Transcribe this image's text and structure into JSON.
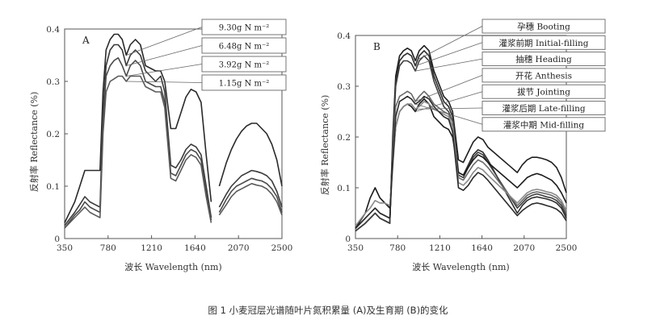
{
  "caption": "图 1 小麦冠层光谱随叶片氮积累量 (A)及生育期 (B)的变化",
  "chart_data": [
    {
      "type": "line",
      "panel_label": "A",
      "xlabel": "波长 Wavelength (nm)",
      "ylabel": "反射率 Reflectance (%)",
      "xlim": [
        350,
        2500
      ],
      "ylim": [
        0,
        0.4
      ],
      "x_ticks": [
        350,
        780,
        1210,
        1640,
        2070,
        2500
      ],
      "x_tick_labels": [
        "350",
        "780",
        "1210",
        "1640",
        "2070",
        "2500"
      ],
      "y_ticks": [
        0,
        0.1,
        0.2,
        0.3,
        0.4
      ],
      "y_tick_labels": [
        "0",
        "0.1",
        "0.2",
        "0.3",
        "0.4"
      ],
      "series": [
        {
          "name": "9.30g N m⁻²",
          "color": "#2a2a2a",
          "x": [
            350,
            450,
            500,
            550,
            600,
            650,
            700,
            730,
            760,
            800,
            840,
            880,
            920,
            960,
            1000,
            1050,
            1100,
            1150,
            1250,
            1300,
            1340,
            1400,
            1450,
            1500,
            1550,
            1600,
            1650,
            1700,
            1750,
            1800,
            1820,
            1880,
            1950,
            2000,
            2050,
            2100,
            2150,
            2200,
            2250,
            2300,
            2350,
            2400,
            2450,
            2500
          ],
          "y": [
            0.03,
            0.07,
            0.1,
            0.13,
            0.13,
            0.13,
            0.13,
            0.28,
            0.36,
            0.38,
            0.39,
            0.39,
            0.38,
            0.35,
            0.37,
            0.38,
            0.37,
            0.33,
            0.32,
            0.32,
            0.3,
            0.21,
            0.21,
            0.24,
            0.27,
            0.285,
            0.28,
            0.26,
            0.16,
            0.07,
            null,
            0.1,
            0.145,
            0.17,
            0.19,
            0.205,
            0.215,
            0.22,
            0.22,
            0.21,
            0.2,
            0.18,
            0.15,
            0.1
          ]
        },
        {
          "name": "6.48g N m⁻²",
          "color": "#3a3a3a",
          "x": [
            350,
            450,
            500,
            550,
            600,
            650,
            700,
            730,
            760,
            800,
            840,
            880,
            920,
            960,
            1000,
            1050,
            1100,
            1150,
            1250,
            1300,
            1340,
            1400,
            1450,
            1500,
            1550,
            1600,
            1650,
            1700,
            1750,
            1800,
            1820,
            1880,
            1950,
            2000,
            2050,
            2100,
            2150,
            2200,
            2250,
            2300,
            2350,
            2400,
            2450,
            2500
          ],
          "y": [
            0.025,
            0.05,
            0.065,
            0.08,
            0.07,
            0.065,
            0.06,
            0.24,
            0.33,
            0.36,
            0.37,
            0.37,
            0.36,
            0.33,
            0.35,
            0.36,
            0.35,
            0.32,
            0.3,
            0.31,
            0.28,
            0.14,
            0.135,
            0.15,
            0.17,
            0.18,
            0.175,
            0.16,
            0.1,
            0.04,
            null,
            0.06,
            0.085,
            0.1,
            0.11,
            0.12,
            0.125,
            0.13,
            0.128,
            0.125,
            0.12,
            0.11,
            0.09,
            0.06
          ]
        },
        {
          "name": "3.92g N m⁻²",
          "color": "#4a4a4a",
          "x": [
            350,
            450,
            500,
            550,
            600,
            650,
            700,
            730,
            760,
            800,
            840,
            880,
            920,
            960,
            1000,
            1050,
            1100,
            1150,
            1250,
            1300,
            1340,
            1400,
            1450,
            1500,
            1550,
            1600,
            1650,
            1700,
            1750,
            1800,
            1820,
            1880,
            1950,
            2000,
            2050,
            2100,
            2150,
            2200,
            2250,
            2300,
            2350,
            2400,
            2450,
            2500
          ],
          "y": [
            0.02,
            0.045,
            0.055,
            0.07,
            0.06,
            0.055,
            0.05,
            0.22,
            0.31,
            0.33,
            0.34,
            0.345,
            0.33,
            0.31,
            0.33,
            0.34,
            0.33,
            0.3,
            0.29,
            0.29,
            0.26,
            0.125,
            0.12,
            0.14,
            0.16,
            0.17,
            0.165,
            0.15,
            0.09,
            0.035,
            null,
            0.05,
            0.075,
            0.09,
            0.1,
            0.105,
            0.11,
            0.115,
            0.112,
            0.11,
            0.105,
            0.095,
            0.08,
            0.05
          ]
        },
        {
          "name": "1.15g N m⁻²",
          "color": "#5a5a5a",
          "x": [
            350,
            450,
            500,
            550,
            600,
            650,
            700,
            730,
            760,
            800,
            840,
            880,
            920,
            960,
            1000,
            1050,
            1100,
            1150,
            1250,
            1300,
            1340,
            1400,
            1450,
            1500,
            1550,
            1600,
            1650,
            1700,
            1750,
            1800,
            1820,
            1880,
            1950,
            2000,
            2050,
            2100,
            2150,
            2200,
            2250,
            2300,
            2350,
            2400,
            2450,
            2500
          ],
          "y": [
            0.02,
            0.04,
            0.05,
            0.06,
            0.05,
            0.045,
            0.04,
            0.2,
            0.28,
            0.3,
            0.305,
            0.31,
            0.31,
            0.3,
            0.31,
            0.31,
            0.31,
            0.29,
            0.28,
            0.28,
            0.25,
            0.115,
            0.11,
            0.13,
            0.15,
            0.16,
            0.155,
            0.14,
            0.08,
            0.03,
            null,
            0.045,
            0.065,
            0.08,
            0.09,
            0.095,
            0.1,
            0.105,
            0.102,
            0.1,
            0.095,
            0.085,
            0.07,
            0.045
          ]
        }
      ]
    },
    {
      "type": "line",
      "panel_label": "B",
      "xlabel": "波长 Wavelength (nm)",
      "ylabel": "反射率 Reflectance (%)",
      "xlim": [
        350,
        2500
      ],
      "ylim": [
        0,
        0.4
      ],
      "x_ticks": [
        350,
        780,
        1210,
        1640,
        2070,
        2500
      ],
      "x_tick_labels": [
        "350",
        "780",
        "1210",
        "1640",
        "2070",
        "2500"
      ],
      "y_ticks": [
        0,
        0.1,
        0.2,
        0.3,
        0.4
      ],
      "y_tick_labels": [
        "0",
        "0.1",
        "0.2",
        "0.3",
        "0.4"
      ],
      "series": [
        {
          "name": "孕穗 Booting",
          "color": "#1e1e1e",
          "x": [
            350,
            450,
            500,
            550,
            600,
            650,
            700,
            730,
            760,
            800,
            840,
            880,
            920,
            960,
            1000,
            1050,
            1100,
            1150,
            1250,
            1300,
            1340,
            1400,
            1450,
            1500,
            1550,
            1600,
            1650,
            1700,
            2000,
            2050,
            2100,
            2150,
            2200,
            2250,
            2300,
            2350,
            2400,
            2450,
            2500
          ],
          "y": [
            0.015,
            0.03,
            0.04,
            0.05,
            0.04,
            0.035,
            0.03,
            0.2,
            0.32,
            0.36,
            0.37,
            0.375,
            0.37,
            0.35,
            0.37,
            0.38,
            0.37,
            0.33,
            0.28,
            0.27,
            0.25,
            0.155,
            0.15,
            0.17,
            0.19,
            0.2,
            0.195,
            0.18,
            0.13,
            0.145,
            0.155,
            0.16,
            0.16,
            0.158,
            0.155,
            0.15,
            0.14,
            0.12,
            0.09
          ]
        },
        {
          "name": "灌浆前期 Initial-filling",
          "color": "#2e2e2e",
          "x": [
            350,
            450,
            500,
            550,
            600,
            650,
            700,
            730,
            760,
            800,
            840,
            880,
            920,
            960,
            1000,
            1050,
            1100,
            1150,
            1250,
            1300,
            1340,
            1400,
            1450,
            1500,
            1550,
            1600,
            1650,
            1700,
            2000,
            2050,
            2100,
            2150,
            2200,
            2250,
            2300,
            2350,
            2400,
            2450,
            2500
          ],
          "y": [
            0.015,
            0.03,
            0.04,
            0.05,
            0.04,
            0.035,
            0.03,
            0.19,
            0.31,
            0.35,
            0.36,
            0.365,
            0.36,
            0.34,
            0.36,
            0.37,
            0.36,
            0.32,
            0.27,
            0.26,
            0.24,
            0.13,
            0.125,
            0.145,
            0.165,
            0.175,
            0.17,
            0.155,
            0.05,
            0.065,
            0.075,
            0.08,
            0.082,
            0.08,
            0.078,
            0.075,
            0.07,
            0.06,
            0.04
          ]
        },
        {
          "name": "抽穗 Heading",
          "color": "#3e3e3e",
          "x": [
            350,
            450,
            500,
            550,
            600,
            650,
            700,
            730,
            760,
            800,
            840,
            880,
            920,
            960,
            1000,
            1050,
            1100,
            1150,
            1250,
            1300,
            1340,
            1400,
            1450,
            1500,
            1550,
            1600,
            1650,
            1700,
            2000,
            2050,
            2100,
            2150,
            2200,
            2250,
            2300,
            2350,
            2400,
            2450,
            2500
          ],
          "y": [
            0.015,
            0.03,
            0.04,
            0.05,
            0.04,
            0.035,
            0.03,
            0.18,
            0.3,
            0.34,
            0.35,
            0.35,
            0.345,
            0.33,
            0.35,
            0.36,
            0.35,
            0.31,
            0.26,
            0.25,
            0.23,
            0.125,
            0.12,
            0.14,
            0.16,
            0.17,
            0.165,
            0.15,
            0.06,
            0.07,
            0.08,
            0.085,
            0.088,
            0.085,
            0.082,
            0.08,
            0.075,
            0.065,
            0.045
          ]
        },
        {
          "name": "开花 Anthesis",
          "color": "#6a6a6a",
          "x": [
            350,
            450,
            500,
            550,
            600,
            650,
            700,
            730,
            760,
            800,
            840,
            880,
            920,
            960,
            1000,
            1050,
            1100,
            1150,
            1250,
            1300,
            1340,
            1400,
            1450,
            1500,
            1550,
            1600,
            1650,
            1700,
            2000,
            2050,
            2100,
            2150,
            2200,
            2250,
            2300,
            2350,
            2400,
            2450,
            2500
          ],
          "y": [
            0.02,
            0.04,
            0.05,
            0.06,
            0.05,
            0.045,
            0.04,
            0.17,
            0.26,
            0.28,
            0.285,
            0.29,
            0.285,
            0.27,
            0.28,
            0.29,
            0.28,
            0.265,
            0.25,
            0.245,
            0.23,
            0.12,
            0.115,
            0.13,
            0.145,
            0.155,
            0.15,
            0.14,
            0.065,
            0.075,
            0.085,
            0.09,
            0.092,
            0.09,
            0.088,
            0.085,
            0.08,
            0.07,
            0.05
          ]
        },
        {
          "name": "拔节 Jointing",
          "color": "#1a1a1a",
          "x": [
            350,
            450,
            500,
            550,
            600,
            650,
            700,
            730,
            760,
            800,
            840,
            880,
            920,
            960,
            1000,
            1050,
            1100,
            1150,
            1250,
            1300,
            1340,
            1400,
            1450,
            1500,
            1550,
            1600,
            1650,
            1700,
            2000,
            2050,
            2100,
            2150,
            2200,
            2250,
            2300,
            2350,
            2400,
            2450,
            2500
          ],
          "y": [
            0.02,
            0.05,
            0.08,
            0.1,
            0.08,
            0.07,
            0.06,
            0.15,
            0.22,
            0.25,
            0.26,
            0.265,
            0.26,
            0.25,
            0.265,
            0.275,
            0.265,
            0.24,
            0.22,
            0.215,
            0.2,
            0.13,
            0.125,
            0.14,
            0.155,
            0.165,
            0.16,
            0.15,
            0.1,
            0.11,
            0.12,
            0.125,
            0.128,
            0.125,
            0.12,
            0.115,
            0.105,
            0.09,
            0.07
          ]
        },
        {
          "name": "灌浆后期 Late-filling",
          "color": "#8a8a8a",
          "x": [
            350,
            450,
            500,
            550,
            600,
            650,
            700,
            730,
            760,
            800,
            840,
            880,
            920,
            960,
            1000,
            1050,
            1100,
            1150,
            1250,
            1300,
            1340,
            1400,
            1450,
            1500,
            1550,
            1600,
            1650,
            1700,
            2000,
            2050,
            2100,
            2150,
            2200,
            2250,
            2300,
            2350,
            2400,
            2450,
            2500
          ],
          "y": [
            0.025,
            0.05,
            0.06,
            0.075,
            0.07,
            0.07,
            0.065,
            0.14,
            0.22,
            0.25,
            0.26,
            0.265,
            0.265,
            0.255,
            0.26,
            0.27,
            0.265,
            0.255,
            0.245,
            0.24,
            0.22,
            0.11,
            0.105,
            0.115,
            0.13,
            0.14,
            0.135,
            0.125,
            0.07,
            0.08,
            0.09,
            0.095,
            0.097,
            0.095,
            0.092,
            0.09,
            0.085,
            0.075,
            0.055
          ]
        },
        {
          "name": "灌浆中期 Mid-filling",
          "color": "#2a2a2a",
          "x": [
            350,
            450,
            500,
            550,
            600,
            650,
            700,
            730,
            760,
            800,
            840,
            880,
            920,
            960,
            1000,
            1050,
            1100,
            1150,
            1250,
            1300,
            1340,
            1400,
            1450,
            1500,
            1550,
            1600,
            1650,
            1700,
            2000,
            2050,
            2100,
            2150,
            2200,
            2250,
            2300,
            2350,
            2400,
            2450,
            2500
          ],
          "y": [
            0.02,
            0.04,
            0.05,
            0.06,
            0.05,
            0.045,
            0.04,
            0.15,
            0.24,
            0.27,
            0.275,
            0.28,
            0.275,
            0.265,
            0.27,
            0.28,
            0.275,
            0.26,
            0.24,
            0.235,
            0.21,
            0.1,
            0.095,
            0.105,
            0.12,
            0.13,
            0.125,
            0.115,
            0.045,
            0.055,
            0.062,
            0.068,
            0.07,
            0.068,
            0.065,
            0.062,
            0.058,
            0.05,
            0.035
          ]
        }
      ]
    }
  ]
}
